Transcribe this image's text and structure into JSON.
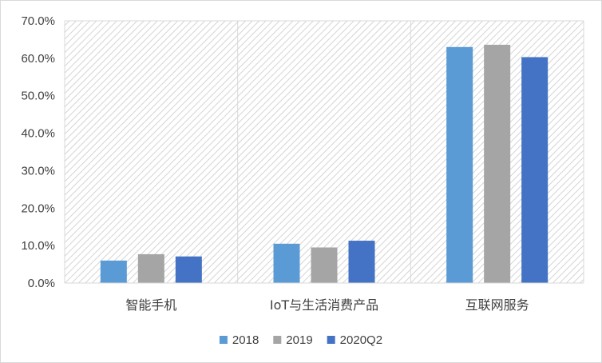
{
  "chart_data": {
    "type": "bar",
    "categories": [
      "智能手机",
      "IoT与生活消费产品",
      "互联网服务"
    ],
    "series": [
      {
        "name": "2018",
        "values": [
          6.0,
          10.5,
          63.0
        ],
        "color": "#5b9bd5"
      },
      {
        "name": "2019",
        "values": [
          7.7,
          9.5,
          63.6
        ],
        "color": "#a5a5a5"
      },
      {
        "name": "2020Q2",
        "values": [
          7.1,
          11.3,
          60.3
        ],
        "color": "#4472c4"
      }
    ],
    "ylim": [
      0,
      70
    ],
    "yticks": [
      "0.0%",
      "10.0%",
      "20.0%",
      "30.0%",
      "40.0%",
      "50.0%",
      "60.0%",
      "70.0%"
    ],
    "title": "",
    "xlabel": "",
    "ylabel": "",
    "legend_position": "bottom",
    "grid": "vertical category separators",
    "plot_background": "diagonal hatch"
  }
}
